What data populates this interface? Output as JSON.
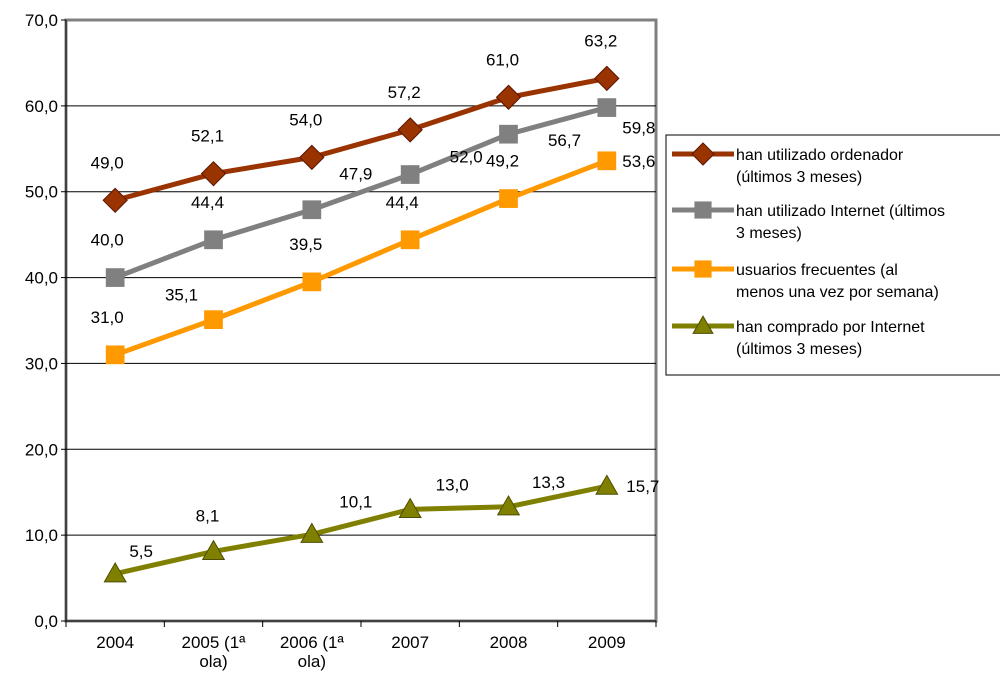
{
  "chart_data": {
    "type": "line",
    "categories": [
      [
        "2004"
      ],
      [
        "2005 (1ª",
        "ola)"
      ],
      [
        "2006 (1ª",
        "ola)"
      ],
      [
        "2007"
      ],
      [
        "2008"
      ],
      [
        "2009"
      ]
    ],
    "ylim": [
      0,
      70
    ],
    "yticks": [
      "0,0",
      "10,0",
      "20,0",
      "30,0",
      "40,0",
      "50,0",
      "60,0",
      "70,0"
    ],
    "grid": "horizontal",
    "legend": "right",
    "series": [
      {
        "name": [
          "han utilizado ordenador",
          "(últimos 3 meses)"
        ],
        "values": [
          49.0,
          52.1,
          54.0,
          57.2,
          61.0,
          63.2
        ],
        "labels": [
          "49,0",
          "52,1",
          "54,0",
          "57,2",
          "61,0",
          "63,2"
        ],
        "color": "#993300",
        "marker": "diamond"
      },
      {
        "name": [
          "han utilizado Internet (últimos",
          "3 meses)"
        ],
        "values": [
          40.0,
          44.4,
          47.9,
          52.0,
          56.7,
          59.8
        ],
        "labels": [
          "40,0",
          "44,4",
          "47,9",
          "52,0",
          "56,7",
          "59,8"
        ],
        "color": "#808080",
        "marker": "square"
      },
      {
        "name": [
          "usuarios frecuentes (al",
          "menos una vez por semana)"
        ],
        "values": [
          31.0,
          35.1,
          39.5,
          44.4,
          49.2,
          53.6
        ],
        "labels": [
          "31,0",
          "35,1",
          "39,5",
          "44,4",
          "49,2",
          "53,6"
        ],
        "color": "#FF9900",
        "marker": "square"
      },
      {
        "name": [
          "han comprado por Internet",
          "(últimos 3 meses)"
        ],
        "values": [
          5.5,
          8.1,
          10.1,
          13.0,
          13.3,
          15.7
        ],
        "labels": [
          "5,5",
          "8,1",
          "10,1",
          "13,0",
          "13,3",
          "15,7"
        ],
        "color": "#808000",
        "marker": "triangle"
      }
    ]
  }
}
